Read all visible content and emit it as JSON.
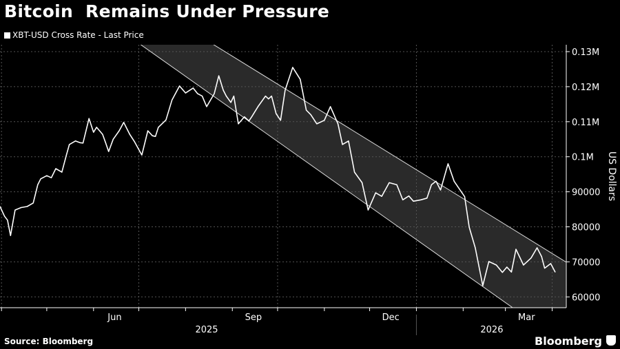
{
  "title": "Bitcoin  Remains Under Pressure",
  "legend_label": "XBT-USD Cross Rate - Last Price",
  "source": "Source: Bloomberg",
  "brand": "Bloomberg",
  "chart_data": {
    "type": "line",
    "title": "Bitcoin  Remains Under Pressure",
    "ylabel": "US Dollars",
    "xlabel": "",
    "x_unit": "days since 2025-03-31",
    "ylim": [
      56500,
      133000
    ],
    "xlim": [
      0,
      375
    ],
    "grid": true,
    "legend_placement": "top-left",
    "y_ticks": [
      {
        "value": 130000,
        "label": "0.13M"
      },
      {
        "value": 120000,
        "label": "0.12M"
      },
      {
        "value": 110000,
        "label": "0.11M"
      },
      {
        "value": 100000,
        "label": "0.1M"
      },
      {
        "value": 90000,
        "label": "90000"
      },
      {
        "value": 80000,
        "label": "80000"
      },
      {
        "value": 70000,
        "label": "70000"
      },
      {
        "value": 60000,
        "label": "60000"
      }
    ],
    "x_month_labels": [
      {
        "day": 76,
        "label": "Jun"
      },
      {
        "day": 168,
        "label": "Sep"
      },
      {
        "day": 259,
        "label": "Dec"
      },
      {
        "day": 349,
        "label": "Mar"
      }
    ],
    "x_year_labels": [
      {
        "day": 137,
        "label": "2025"
      },
      {
        "day": 326,
        "label": "2026"
      }
    ],
    "series": [
      {
        "name": "XBT-USD Cross Rate - Last Price",
        "color": "#ffffff",
        "x": [
          0,
          3,
          5,
          7,
          10,
          14,
          18,
          22,
          25,
          27,
          31,
          34,
          37,
          41,
          44,
          46,
          50,
          53,
          55,
          59,
          62,
          64,
          68,
          70,
          72,
          75,
          79,
          82,
          86,
          89,
          94,
          98,
          101,
          103,
          105,
          110,
          114,
          119,
          123,
          128,
          131,
          134,
          137,
          142,
          145,
          148,
          150,
          153,
          155,
          158,
          162,
          165,
          167,
          171,
          176,
          178,
          180,
          183,
          186,
          189,
          194,
          199,
          203,
          206,
          210,
          215,
          219,
          224,
          227,
          231,
          235,
          240,
          244,
          249,
          253,
          258,
          263,
          267,
          271,
          274,
          279,
          283,
          286,
          289,
          292,
          297,
          301,
          305,
          308,
          311,
          315,
          320,
          324,
          329,
          333,
          336,
          339,
          342,
          347,
          352,
          356,
          359,
          361,
          365,
          368
        ],
        "y": [
          85800,
          83000,
          81900,
          77500,
          84800,
          85500,
          85800,
          86800,
          92000,
          93700,
          94600,
          94000,
          96600,
          95600,
          100500,
          103500,
          104500,
          104000,
          103900,
          110900,
          107000,
          108400,
          106400,
          104000,
          101500,
          105000,
          107400,
          109800,
          106400,
          104400,
          100500,
          107400,
          106000,
          105800,
          108400,
          110500,
          116200,
          120200,
          118200,
          119600,
          118000,
          117300,
          114300,
          118000,
          123100,
          119000,
          117300,
          115500,
          117300,
          109400,
          111400,
          110200,
          111500,
          114300,
          117300,
          116500,
          117300,
          112300,
          110400,
          119000,
          125500,
          122100,
          113300,
          112000,
          109400,
          110400,
          114300,
          109400,
          103500,
          104500,
          95600,
          92600,
          84800,
          89700,
          88700,
          92600,
          92000,
          87700,
          88800,
          87300,
          87700,
          88200,
          92000,
          93000,
          90500,
          98000,
          93000,
          90500,
          88600,
          79900,
          74000,
          63200,
          70100,
          69100,
          67000,
          68500,
          67100,
          73600,
          69100,
          71100,
          74000,
          71500,
          68200,
          69500,
          67100
        ]
      },
      {
        "name": "Upper trend channel",
        "color": "#ffffff",
        "x": [
          0,
          375
        ],
        "y": [
          169600,
          70000
        ]
      },
      {
        "name": "Lower trend channel",
        "color": "#ffffff",
        "x": [
          0,
          375
        ],
        "y": [
          160400,
          46200
        ]
      }
    ]
  }
}
